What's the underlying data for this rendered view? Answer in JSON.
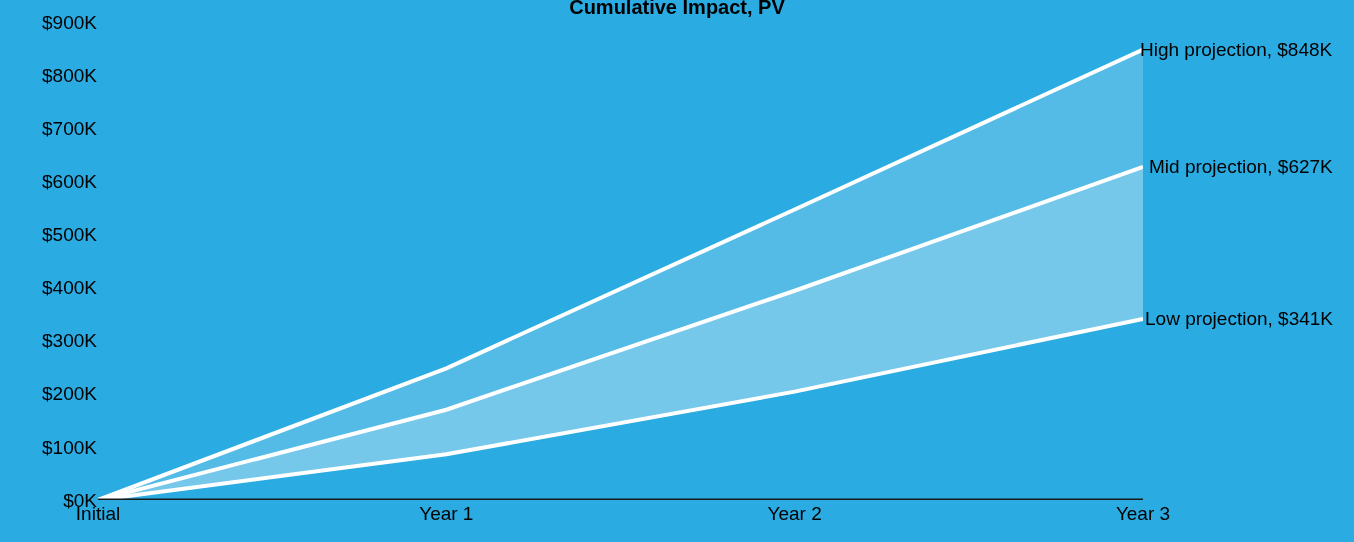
{
  "chart_data": {
    "type": "area",
    "title": "Cumulative Impact, PV",
    "categories": [
      "Initial",
      "Year 1",
      "Year 2",
      "Year 3"
    ],
    "series": [
      {
        "name": "Low projection",
        "type": "line",
        "color": "#ffffff",
        "values": [
          0,
          86,
          204,
          341
        ],
        "value_labels": [
          null,
          null,
          null,
          ", $341K"
        ]
      },
      {
        "name": "Mid projection",
        "color": "#ffffff",
        "values": [
          0,
          170,
          394,
          627
        ],
        "value_labels": [
          null,
          null,
          null,
          ", $627K"
        ]
      },
      {
        "name": "High projection",
        "color": "#ffffff",
        "values": [
          0,
          248,
          547,
          848
        ],
        "value_labels": [
          null,
          null,
          null,
          ", $848K"
        ]
      }
    ],
    "ylim": [
      0,
      900
    ],
    "yticks": [
      {
        "value": 0,
        "label": "$0K"
      },
      {
        "value": 100,
        "label": "$100K"
      },
      {
        "value": 200,
        "label": "$200K"
      },
      {
        "value": 300,
        "label": "$300K"
      },
      {
        "value": 400,
        "label": "$400K"
      },
      {
        "value": 500,
        "label": "$500K"
      },
      {
        "value": 600,
        "label": "$600K"
      },
      {
        "value": 700,
        "label": "$700K"
      },
      {
        "value": 800,
        "label": "$800K"
      },
      {
        "value": 900,
        "label": "$900K"
      }
    ],
    "grid": false,
    "legend": false,
    "marker": "none",
    "line_style": "solid"
  }
}
